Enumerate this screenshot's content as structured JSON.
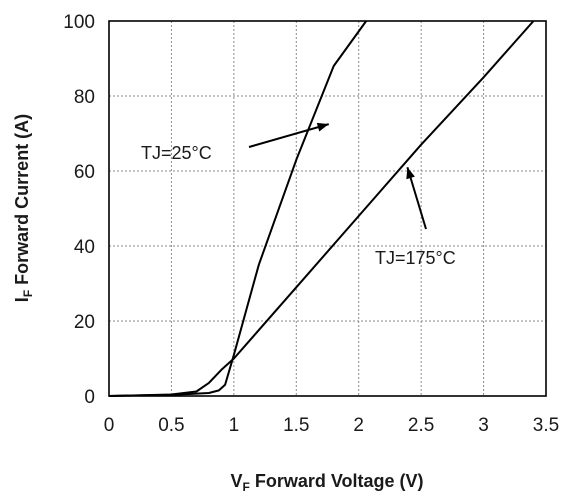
{
  "chart_data": {
    "type": "line",
    "xlabel": {
      "main": "V",
      "sub": "F",
      "rest": " Forward Voltage (V)"
    },
    "ylabel": {
      "main": "I",
      "sub": "F",
      "rest": " Forward Current (A)"
    },
    "xlim": [
      0,
      3.5
    ],
    "ylim": [
      0,
      100
    ],
    "xticks": [
      "0",
      "0.5",
      "1",
      "1.5",
      "2",
      "2.5",
      "3",
      "3.5"
    ],
    "yticks": [
      "0",
      "20",
      "40",
      "60",
      "80",
      "100"
    ],
    "grid": true,
    "series": [
      {
        "name": "TJ=25°C",
        "x": [
          0,
          0.5,
          0.8,
          0.88,
          0.93,
          1.0,
          1.2,
          1.5,
          1.8,
          2.06
        ],
        "y": [
          0,
          0.3,
          0.8,
          1.5,
          3,
          11,
          35,
          63,
          88,
          100
        ]
      },
      {
        "name": "TJ=175°C",
        "x": [
          0,
          0.5,
          0.7,
          0.8,
          0.9,
          1.0,
          1.5,
          2.0,
          2.5,
          3.0,
          3.4
        ],
        "y": [
          0,
          0.4,
          1.2,
          3.5,
          7,
          10,
          29,
          48,
          67,
          85,
          100
        ]
      }
    ],
    "annotations": [
      {
        "text": "TJ=25°C",
        "points_to": {
          "x": 1.76,
          "y": 72.5
        }
      },
      {
        "text": "TJ=175°C",
        "points_to": {
          "x": 2.39,
          "y": 61
        }
      }
    ]
  }
}
